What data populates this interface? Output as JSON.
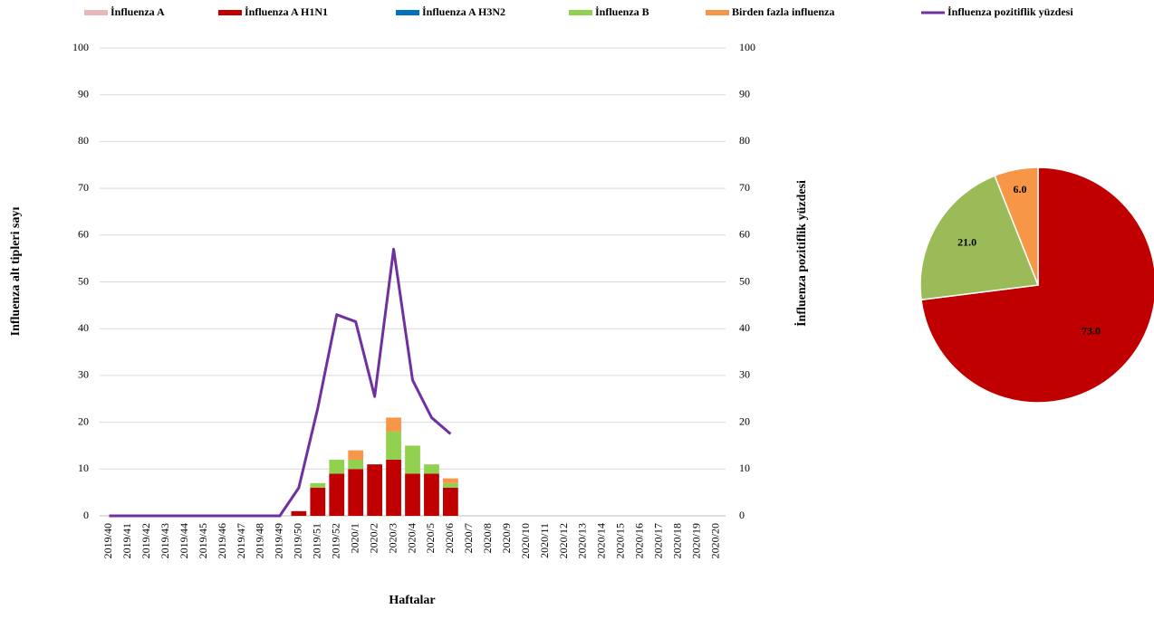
{
  "chart_data": [
    {
      "type": "bar",
      "x_label": "Haftalar",
      "y_label": "Influenza alt tipleri sayı",
      "y2_label": "İnfluenza pozitiflik yüzdesi",
      "categories": [
        "2019/40",
        "2019/41",
        "2019/42",
        "2019/43",
        "2019/44",
        "2019/45",
        "2019/46",
        "2019/47",
        "2019/48",
        "2019/49",
        "2019/50",
        "2019/51",
        "2019/52",
        "2020/1",
        "2020/2",
        "2020/3",
        "2020/4",
        "2020/5",
        "2020/6",
        "2020/7",
        "2020/8",
        "2020/9",
        "2020/10",
        "2020/11",
        "2020/12",
        "2020/13",
        "2020/14",
        "2020/15",
        "2020/16",
        "2020/17",
        "2020/18",
        "2020/19",
        "2020/20"
      ],
      "series": [
        {
          "name": "İnfluenza A",
          "color": "#e6b9b8",
          "values": [
            0,
            0,
            0,
            0,
            0,
            0,
            0,
            0,
            0,
            0,
            0,
            0,
            0,
            0,
            0,
            0,
            0,
            0,
            0,
            null,
            null,
            null,
            null,
            null,
            null,
            null,
            null,
            null,
            null,
            null,
            null,
            null,
            null
          ]
        },
        {
          "name": "İnfluenza A H1N1",
          "color": "#c00000",
          "values": [
            0,
            0,
            0,
            0,
            0,
            0,
            0,
            0,
            0,
            0,
            1,
            6,
            9,
            10,
            11,
            12,
            9,
            9,
            6,
            null,
            null,
            null,
            null,
            null,
            null,
            null,
            null,
            null,
            null,
            null,
            null,
            null,
            null
          ]
        },
        {
          "name": "İnfluenza A H3N2",
          "color": "#0070c0",
          "values": [
            0,
            0,
            0,
            0,
            0,
            0,
            0,
            0,
            0,
            0,
            0,
            0,
            0,
            0,
            0,
            0,
            0,
            0,
            0,
            null,
            null,
            null,
            null,
            null,
            null,
            null,
            null,
            null,
            null,
            null,
            null,
            null,
            null
          ]
        },
        {
          "name": "İnfluenza B",
          "color": "#92d050",
          "values": [
            0,
            0,
            0,
            0,
            0,
            0,
            0,
            0,
            0,
            0,
            0,
            1,
            3,
            2,
            0,
            6,
            6,
            2,
            1,
            null,
            null,
            null,
            null,
            null,
            null,
            null,
            null,
            null,
            null,
            null,
            null,
            null,
            null
          ]
        },
        {
          "name": "Birden fazla influenza",
          "color": "#f79646",
          "values": [
            0,
            0,
            0,
            0,
            0,
            0,
            0,
            0,
            0,
            0,
            0,
            0,
            0,
            2,
            0,
            3,
            0,
            0,
            1,
            null,
            null,
            null,
            null,
            null,
            null,
            null,
            null,
            null,
            null,
            null,
            null,
            null,
            null
          ]
        },
        {
          "name": "İnfluenza pozitiflik yüzdesi",
          "color": "#7030a0",
          "type": "line",
          "axis": "y2",
          "values": [
            0,
            0,
            0,
            0,
            0,
            0,
            0,
            0,
            0,
            0,
            6,
            23,
            43,
            41.5,
            25.5,
            57,
            29,
            21,
            17.5,
            null,
            null,
            null,
            null,
            null,
            null,
            null,
            null,
            null,
            null,
            null,
            null,
            null,
            null
          ]
        }
      ],
      "ylim": [
        0,
        100
      ],
      "yticks": [
        0,
        10,
        20,
        30,
        40,
        50,
        60,
        70,
        80,
        90,
        100
      ],
      "y2lim": [
        0,
        100
      ],
      "y2ticks": [
        0,
        10,
        20,
        30,
        40,
        50,
        60,
        70,
        80,
        90,
        100
      ],
      "grid": true
    },
    {
      "type": "pie",
      "values": [
        73,
        21,
        6
      ],
      "value_labels": [
        "73.0",
        "21.0",
        "6.0"
      ],
      "colors": [
        "#c00000",
        "#9bbb59",
        "#f79646"
      ]
    }
  ]
}
